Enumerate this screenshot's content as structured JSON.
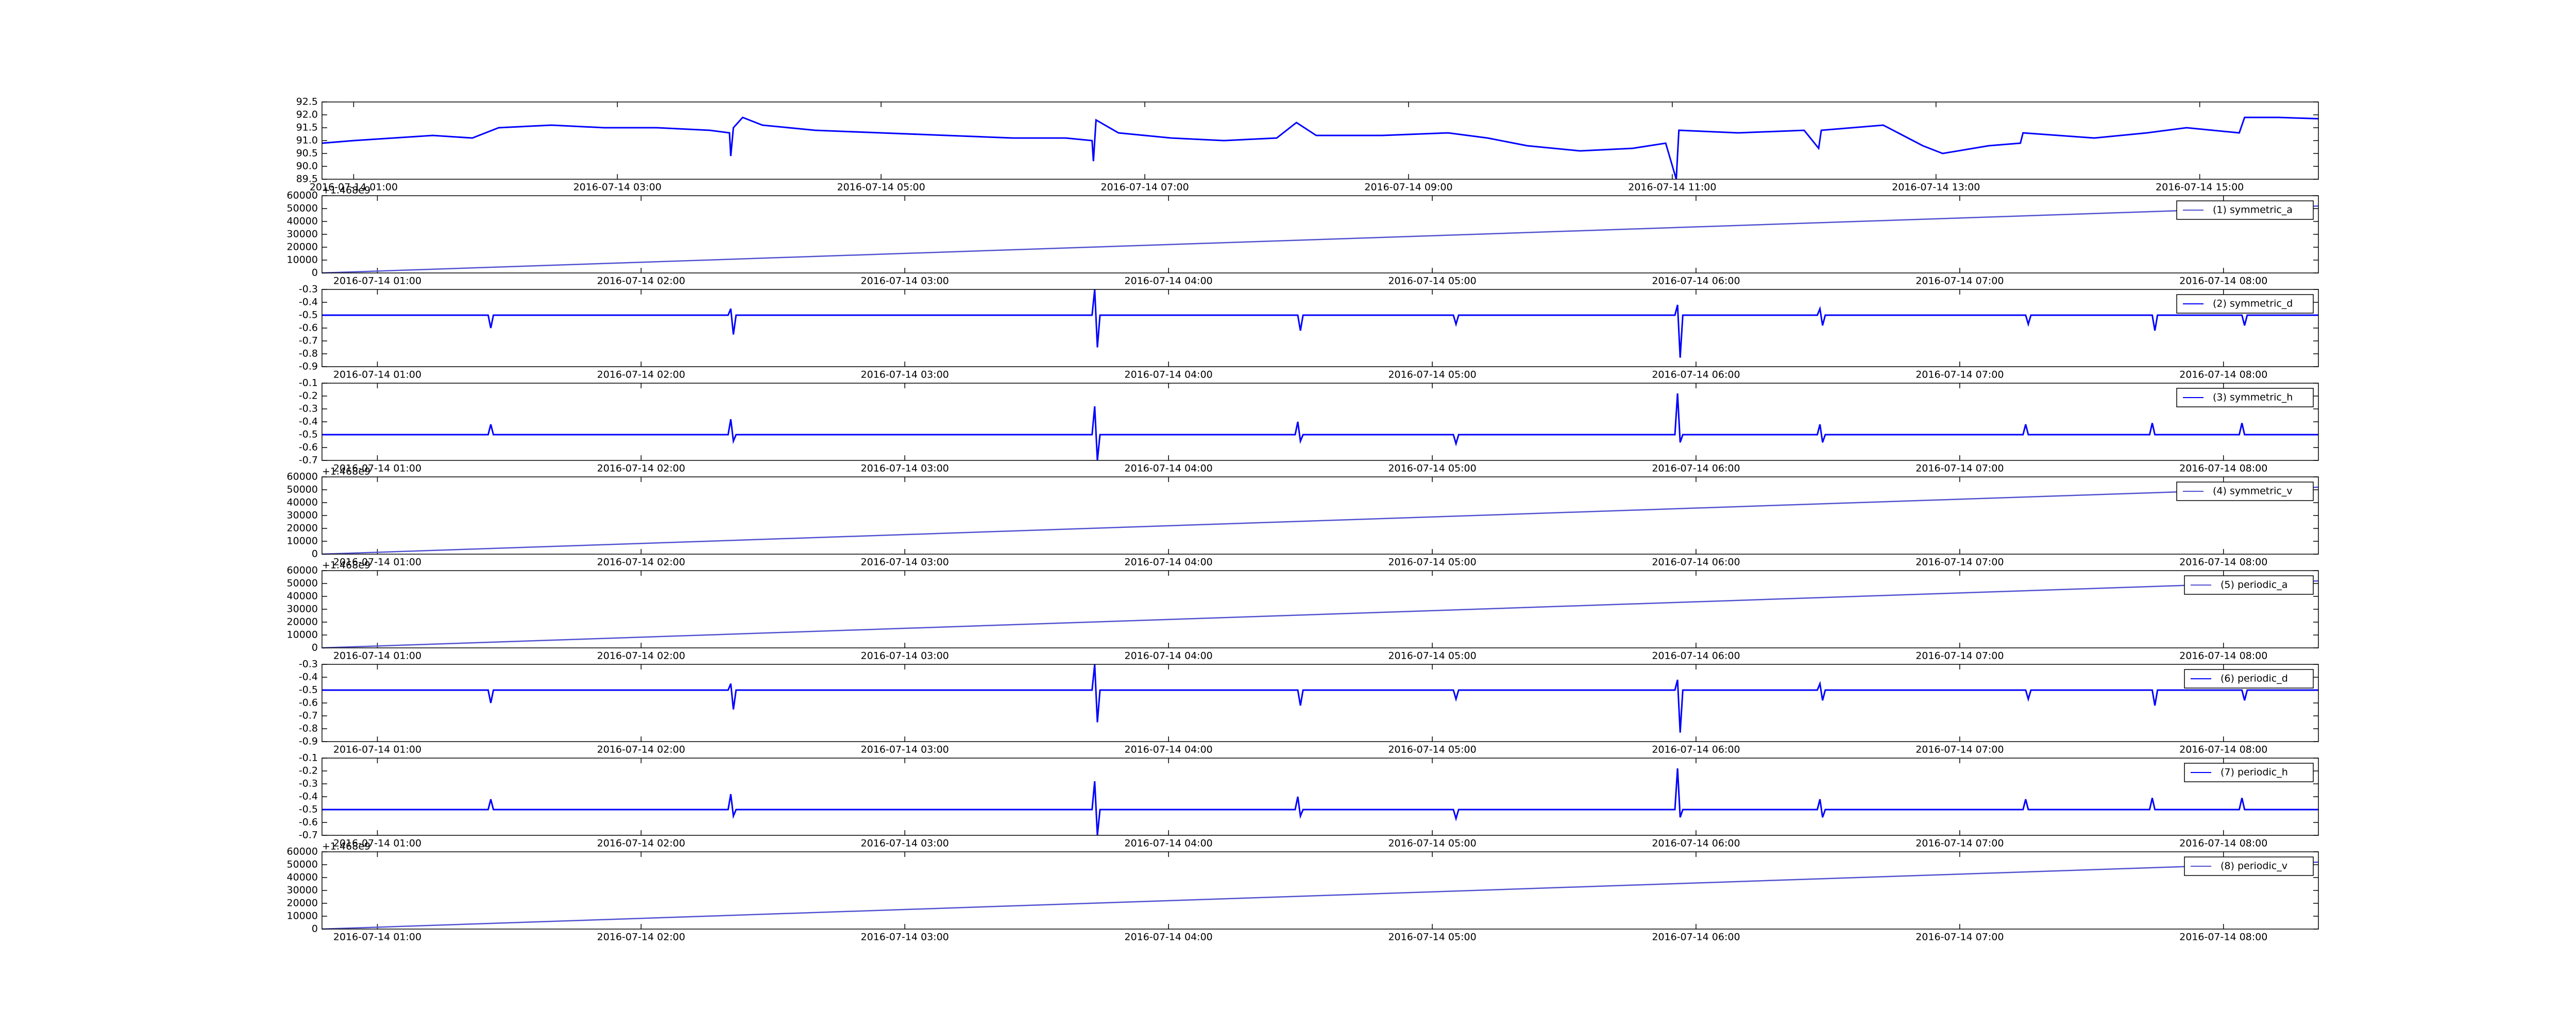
{
  "chart_data": [
    {
      "type": "line",
      "x": [
        0.76,
        1.0,
        1.3,
        1.6,
        1.9,
        2.1,
        2.5,
        2.9,
        3.3,
        3.7,
        3.85,
        3.86,
        3.88,
        3.95,
        4.1,
        4.5,
        5.0,
        5.5,
        6.0,
        6.4,
        6.6,
        6.61,
        6.63,
        6.8,
        7.2,
        7.6,
        8.0,
        8.15,
        8.3,
        8.8,
        9.3,
        9.6,
        9.9,
        10.3,
        10.7,
        10.95,
        11.03,
        11.05,
        11.5,
        12.0,
        12.11,
        12.13,
        12.6,
        12.9,
        13.05,
        13.4,
        13.64,
        13.66,
        14.2,
        14.6,
        14.9,
        15.3,
        15.34,
        15.6,
        15.9
      ],
      "series": [
        {
          "color": "#0000ff",
          "values": [
            90.9,
            91.0,
            91.1,
            91.2,
            91.1,
            91.5,
            91.6,
            91.5,
            91.5,
            91.4,
            91.3,
            90.4,
            91.5,
            91.9,
            91.6,
            91.4,
            91.3,
            91.2,
            91.1,
            91.1,
            91.0,
            90.2,
            91.8,
            91.3,
            91.1,
            91.0,
            91.1,
            91.7,
            91.2,
            91.2,
            91.3,
            91.1,
            90.8,
            90.6,
            90.7,
            90.9,
            89.5,
            91.4,
            91.3,
            91.4,
            90.7,
            91.4,
            91.6,
            90.8,
            90.5,
            90.8,
            90.9,
            91.3,
            91.1,
            91.3,
            91.5,
            91.3,
            91.9,
            91.9,
            91.85
          ]
        }
      ],
      "xlim": [
        0.76,
        15.9
      ],
      "xticks": [
        {
          "value": 1,
          "label": "2016-07-14 01:00"
        },
        {
          "value": 3,
          "label": "2016-07-14 03:00"
        },
        {
          "value": 5,
          "label": "2016-07-14 05:00"
        },
        {
          "value": 7,
          "label": "2016-07-14 07:00"
        },
        {
          "value": 9,
          "label": "2016-07-14 09:00"
        },
        {
          "value": 11,
          "label": "2016-07-14 11:00"
        },
        {
          "value": 13,
          "label": "2016-07-14 13:00"
        },
        {
          "value": 15,
          "label": "2016-07-14 15:00"
        }
      ],
      "ylim": [
        89.5,
        92.5
      ],
      "yticks": [
        89.5,
        {
          "value": 90,
          "label": "90.0"
        },
        90.5,
        {
          "value": 91,
          "label": "91.0"
        },
        91.5,
        {
          "value": 92,
          "label": "92.0"
        },
        92.5
      ]
    },
    {
      "type": "line",
      "x": [
        0.79,
        8.36
      ],
      "series": [
        {
          "name": "(1) symmetric_a",
          "color": "#5050d0",
          "values": [
            0,
            52000
          ]
        }
      ],
      "xlim": [
        0.79,
        8.36
      ],
      "xticks": [
        {
          "value": 1,
          "label": "2016-07-14 01:00"
        },
        {
          "value": 2,
          "label": "2016-07-14 02:00"
        },
        {
          "value": 3,
          "label": "2016-07-14 03:00"
        },
        {
          "value": 4,
          "label": "2016-07-14 04:00"
        },
        {
          "value": 5,
          "label": "2016-07-14 05:00"
        },
        {
          "value": 6,
          "label": "2016-07-14 06:00"
        },
        {
          "value": 7,
          "label": "2016-07-14 07:00"
        },
        {
          "value": 8,
          "label": "2016-07-14 08:00"
        }
      ],
      "ylim": [
        0,
        60000
      ],
      "yticks": [
        0,
        10000,
        20000,
        30000,
        40000,
        50000,
        60000
      ],
      "offset_text": "+1.468e9",
      "legend": "upper right"
    },
    {
      "type": "line",
      "x": [
        0.79,
        1.42,
        1.43,
        1.44,
        1.45,
        2.33,
        2.34,
        2.35,
        2.36,
        3.71,
        3.72,
        3.73,
        3.74,
        4.48,
        4.49,
        4.5,
        4.51,
        5.07,
        5.08,
        5.09,
        5.1,
        5.92,
        5.93,
        5.94,
        5.95,
        6.46,
        6.47,
        6.48,
        6.49,
        7.24,
        7.25,
        7.26,
        7.27,
        7.72,
        7.73,
        7.74,
        7.75,
        8.06,
        8.07,
        8.08,
        8.09,
        8.36
      ],
      "series": [
        {
          "name": "(2) symmetric_d",
          "color": "#0000ff",
          "values": [
            -0.5,
            -0.5,
            -0.6,
            -0.5,
            -0.5,
            -0.5,
            -0.45,
            -0.65,
            -0.5,
            -0.5,
            -0.3,
            -0.75,
            -0.5,
            -0.5,
            -0.5,
            -0.62,
            -0.5,
            -0.5,
            -0.5,
            -0.57,
            -0.5,
            -0.5,
            -0.42,
            -0.83,
            -0.5,
            -0.5,
            -0.45,
            -0.58,
            -0.5,
            -0.5,
            -0.5,
            -0.57,
            -0.5,
            -0.5,
            -0.5,
            -0.62,
            -0.5,
            -0.5,
            -0.5,
            -0.58,
            -0.5,
            -0.5
          ]
        }
      ],
      "xlim": [
        0.79,
        8.36
      ],
      "xticks": [
        {
          "value": 1,
          "label": "2016-07-14 01:00"
        },
        {
          "value": 2,
          "label": "2016-07-14 02:00"
        },
        {
          "value": 3,
          "label": "2016-07-14 03:00"
        },
        {
          "value": 4,
          "label": "2016-07-14 04:00"
        },
        {
          "value": 5,
          "label": "2016-07-14 05:00"
        },
        {
          "value": 6,
          "label": "2016-07-14 06:00"
        },
        {
          "value": 7,
          "label": "2016-07-14 07:00"
        },
        {
          "value": 8,
          "label": "2016-07-14 08:00"
        }
      ],
      "ylim": [
        -0.9,
        -0.3
      ],
      "yticks": [
        -0.9,
        -0.8,
        -0.7,
        -0.6,
        -0.5,
        -0.4,
        -0.3
      ],
      "legend": "upper right"
    },
    {
      "type": "line",
      "x": [
        0.79,
        1.42,
        1.43,
        1.44,
        1.45,
        2.33,
        2.34,
        2.35,
        2.36,
        3.71,
        3.72,
        3.73,
        3.74,
        4.48,
        4.49,
        4.5,
        4.51,
        5.07,
        5.08,
        5.09,
        5.1,
        5.92,
        5.93,
        5.94,
        5.95,
        6.46,
        6.47,
        6.48,
        6.49,
        7.24,
        7.25,
        7.26,
        7.27,
        7.72,
        7.73,
        7.74,
        7.75,
        8.06,
        8.07,
        8.08,
        8.09,
        8.36
      ],
      "series": [
        {
          "name": "(3) symmetric_h",
          "color": "#0000ff",
          "values": [
            -0.5,
            -0.5,
            -0.42,
            -0.5,
            -0.5,
            -0.5,
            -0.38,
            -0.55,
            -0.5,
            -0.5,
            -0.28,
            -0.7,
            -0.5,
            -0.5,
            -0.4,
            -0.55,
            -0.5,
            -0.5,
            -0.5,
            -0.57,
            -0.5,
            -0.5,
            -0.18,
            -0.56,
            -0.5,
            -0.5,
            -0.42,
            -0.56,
            -0.5,
            -0.5,
            -0.42,
            -0.5,
            -0.5,
            -0.5,
            -0.41,
            -0.5,
            -0.5,
            -0.5,
            -0.41,
            -0.5,
            -0.5,
            -0.5
          ]
        }
      ],
      "xlim": [
        0.79,
        8.36
      ],
      "xticks": [
        {
          "value": 1,
          "label": "2016-07-14 01:00"
        },
        {
          "value": 2,
          "label": "2016-07-14 02:00"
        },
        {
          "value": 3,
          "label": "2016-07-14 03:00"
        },
        {
          "value": 4,
          "label": "2016-07-14 04:00"
        },
        {
          "value": 5,
          "label": "2016-07-14 05:00"
        },
        {
          "value": 6,
          "label": "2016-07-14 06:00"
        },
        {
          "value": 7,
          "label": "2016-07-14 07:00"
        },
        {
          "value": 8,
          "label": "2016-07-14 08:00"
        }
      ],
      "ylim": [
        -0.7,
        -0.1
      ],
      "yticks": [
        -0.7,
        -0.6,
        -0.5,
        -0.4,
        -0.3,
        -0.2,
        -0.1
      ],
      "legend": "upper right"
    },
    {
      "type": "line",
      "x": [
        0.79,
        8.36
      ],
      "series": [
        {
          "name": "(4) symmetric_v",
          "color": "#5050d0",
          "values": [
            0,
            52000
          ]
        }
      ],
      "xlim": [
        0.79,
        8.36
      ],
      "xticks": [
        {
          "value": 1,
          "label": "2016-07-14 01:00"
        },
        {
          "value": 2,
          "label": "2016-07-14 02:00"
        },
        {
          "value": 3,
          "label": "2016-07-14 03:00"
        },
        {
          "value": 4,
          "label": "2016-07-14 04:00"
        },
        {
          "value": 5,
          "label": "2016-07-14 05:00"
        },
        {
          "value": 6,
          "label": "2016-07-14 06:00"
        },
        {
          "value": 7,
          "label": "2016-07-14 07:00"
        },
        {
          "value": 8,
          "label": "2016-07-14 08:00"
        }
      ],
      "ylim": [
        0,
        60000
      ],
      "yticks": [
        0,
        10000,
        20000,
        30000,
        40000,
        50000,
        60000
      ],
      "offset_text": "+1.468e9",
      "legend": "upper right"
    },
    {
      "type": "line",
      "x": [
        0.79,
        8.36
      ],
      "series": [
        {
          "name": "(5) periodic_a",
          "color": "#5050d0",
          "values": [
            0,
            52000
          ]
        }
      ],
      "xlim": [
        0.79,
        8.36
      ],
      "xticks": [
        {
          "value": 1,
          "label": "2016-07-14 01:00"
        },
        {
          "value": 2,
          "label": "2016-07-14 02:00"
        },
        {
          "value": 3,
          "label": "2016-07-14 03:00"
        },
        {
          "value": 4,
          "label": "2016-07-14 04:00"
        },
        {
          "value": 5,
          "label": "2016-07-14 05:00"
        },
        {
          "value": 6,
          "label": "2016-07-14 06:00"
        },
        {
          "value": 7,
          "label": "2016-07-14 07:00"
        },
        {
          "value": 8,
          "label": "2016-07-14 08:00"
        }
      ],
      "ylim": [
        0,
        60000
      ],
      "yticks": [
        0,
        10000,
        20000,
        30000,
        40000,
        50000,
        60000
      ],
      "offset_text": "+1.468e9",
      "legend": "upper right"
    },
    {
      "type": "line",
      "x": [
        0.79,
        1.42,
        1.43,
        1.44,
        1.45,
        2.33,
        2.34,
        2.35,
        2.36,
        3.71,
        3.72,
        3.73,
        3.74,
        4.48,
        4.49,
        4.5,
        4.51,
        5.07,
        5.08,
        5.09,
        5.1,
        5.92,
        5.93,
        5.94,
        5.95,
        6.46,
        6.47,
        6.48,
        6.49,
        7.24,
        7.25,
        7.26,
        7.27,
        7.72,
        7.73,
        7.74,
        7.75,
        8.06,
        8.07,
        8.08,
        8.09,
        8.36
      ],
      "series": [
        {
          "name": "(6) periodic_d",
          "color": "#0000ff",
          "values": [
            -0.5,
            -0.5,
            -0.6,
            -0.5,
            -0.5,
            -0.5,
            -0.45,
            -0.65,
            -0.5,
            -0.5,
            -0.3,
            -0.75,
            -0.5,
            -0.5,
            -0.5,
            -0.62,
            -0.5,
            -0.5,
            -0.5,
            -0.57,
            -0.5,
            -0.5,
            -0.42,
            -0.83,
            -0.5,
            -0.5,
            -0.45,
            -0.58,
            -0.5,
            -0.5,
            -0.5,
            -0.57,
            -0.5,
            -0.5,
            -0.5,
            -0.62,
            -0.5,
            -0.5,
            -0.5,
            -0.58,
            -0.5,
            -0.5
          ]
        }
      ],
      "xlim": [
        0.79,
        8.36
      ],
      "xticks": [
        {
          "value": 1,
          "label": "2016-07-14 01:00"
        },
        {
          "value": 2,
          "label": "2016-07-14 02:00"
        },
        {
          "value": 3,
          "label": "2016-07-14 03:00"
        },
        {
          "value": 4,
          "label": "2016-07-14 04:00"
        },
        {
          "value": 5,
          "label": "2016-07-14 05:00"
        },
        {
          "value": 6,
          "label": "2016-07-14 06:00"
        },
        {
          "value": 7,
          "label": "2016-07-14 07:00"
        },
        {
          "value": 8,
          "label": "2016-07-14 08:00"
        }
      ],
      "ylim": [
        -0.9,
        -0.3
      ],
      "yticks": [
        -0.9,
        -0.8,
        -0.7,
        -0.6,
        -0.5,
        -0.4,
        -0.3
      ],
      "legend": "upper right"
    },
    {
      "type": "line",
      "x": [
        0.79,
        1.42,
        1.43,
        1.44,
        1.45,
        2.33,
        2.34,
        2.35,
        2.36,
        3.71,
        3.72,
        3.73,
        3.74,
        4.48,
        4.49,
        4.5,
        4.51,
        5.07,
        5.08,
        5.09,
        5.1,
        5.92,
        5.93,
        5.94,
        5.95,
        6.46,
        6.47,
        6.48,
        6.49,
        7.24,
        7.25,
        7.26,
        7.27,
        7.72,
        7.73,
        7.74,
        7.75,
        8.06,
        8.07,
        8.08,
        8.09,
        8.36
      ],
      "series": [
        {
          "name": "(7) periodic_h",
          "color": "#0000ff",
          "values": [
            -0.5,
            -0.5,
            -0.42,
            -0.5,
            -0.5,
            -0.5,
            -0.38,
            -0.55,
            -0.5,
            -0.5,
            -0.28,
            -0.7,
            -0.5,
            -0.5,
            -0.4,
            -0.55,
            -0.5,
            -0.5,
            -0.5,
            -0.57,
            -0.5,
            -0.5,
            -0.18,
            -0.56,
            -0.5,
            -0.5,
            -0.42,
            -0.56,
            -0.5,
            -0.5,
            -0.42,
            -0.5,
            -0.5,
            -0.5,
            -0.41,
            -0.5,
            -0.5,
            -0.5,
            -0.41,
            -0.5,
            -0.5,
            -0.5
          ]
        }
      ],
      "xlim": [
        0.79,
        8.36
      ],
      "xticks": [
        {
          "value": 1,
          "label": "2016-07-14 01:00"
        },
        {
          "value": 2,
          "label": "2016-07-14 02:00"
        },
        {
          "value": 3,
          "label": "2016-07-14 03:00"
        },
        {
          "value": 4,
          "label": "2016-07-14 04:00"
        },
        {
          "value": 5,
          "label": "2016-07-14 05:00"
        },
        {
          "value": 6,
          "label": "2016-07-14 06:00"
        },
        {
          "value": 7,
          "label": "2016-07-14 07:00"
        },
        {
          "value": 8,
          "label": "2016-07-14 08:00"
        }
      ],
      "ylim": [
        -0.7,
        -0.1
      ],
      "yticks": [
        -0.7,
        -0.6,
        -0.5,
        -0.4,
        -0.3,
        -0.2,
        -0.1
      ],
      "legend": "upper right"
    },
    {
      "type": "line",
      "x": [
        0.79,
        8.36
      ],
      "series": [
        {
          "name": "(8) periodic_v",
          "color": "#5050d0",
          "values": [
            0,
            52000
          ]
        }
      ],
      "xlim": [
        0.79,
        8.36
      ],
      "xticks": [
        {
          "value": 1,
          "label": "2016-07-14 01:00"
        },
        {
          "value": 2,
          "label": "2016-07-14 02:00"
        },
        {
          "value": 3,
          "label": "2016-07-14 03:00"
        },
        {
          "value": 4,
          "label": "2016-07-14 04:00"
        },
        {
          "value": 5,
          "label": "2016-07-14 05:00"
        },
        {
          "value": 6,
          "label": "2016-07-14 06:00"
        },
        {
          "value": 7,
          "label": "2016-07-14 07:00"
        },
        {
          "value": 8,
          "label": "2016-07-14 08:00"
        }
      ],
      "ylim": [
        0,
        60000
      ],
      "yticks": [
        0,
        10000,
        20000,
        30000,
        40000,
        50000,
        60000
      ],
      "offset_text": "+1.468e9",
      "legend": "upper right"
    }
  ]
}
